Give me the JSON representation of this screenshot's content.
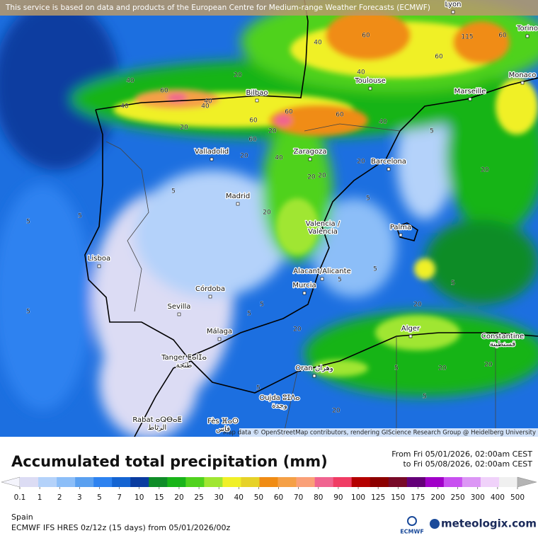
{
  "header_notice": "This service is based on data and products of the European Centre for Medium-range Weather Forecasts (ECMWF)",
  "map": {
    "cities": [
      {
        "name": "Lyon"
      },
      {
        "name": "Torino"
      },
      {
        "name": "Monaco"
      },
      {
        "name": "Toulouse"
      },
      {
        "name": "Marseille"
      },
      {
        "name": "Bilbao"
      },
      {
        "name": "Valladolid"
      },
      {
        "name": "Zaragoza"
      },
      {
        "name": "Barcelona"
      },
      {
        "name": "Madrid"
      },
      {
        "name": "Valencia /",
        "alt": "València"
      },
      {
        "name": "Palma"
      },
      {
        "name": "Lisboa"
      },
      {
        "name": "Alacant/Alicante"
      },
      {
        "name": "Murcia"
      },
      {
        "name": "Córdoba"
      },
      {
        "name": "Sevilla"
      },
      {
        "name": "Málaga"
      },
      {
        "name": "Alger"
      },
      {
        "name": "Constantine",
        "alt": "قسنطينة"
      },
      {
        "name": "Tanger ⵟⴰⵏⵊⴰ",
        "alt": "طنجة"
      },
      {
        "name": "Oran وهران"
      },
      {
        "name": "Oujda ⵓⵊⴷⴰ",
        "alt": "وجدة"
      },
      {
        "name": "Rabat ⴰⵕⴱⴰⵟ",
        "alt": "الرباط"
      },
      {
        "name": "Fès ⴼⴰⵙ",
        "alt": "فاس"
      }
    ],
    "contour_labels": [
      40,
      60,
      40,
      40,
      60,
      20,
      60,
      60,
      40,
      60,
      40,
      20,
      60,
      40,
      20,
      40,
      60,
      40,
      20,
      115,
      60,
      20,
      5,
      5,
      5,
      20,
      20,
      5,
      5,
      5,
      5,
      20,
      5,
      5,
      20,
      5,
      20,
      5,
      20,
      5,
      5,
      20,
      20,
      5,
      20
    ],
    "attribution": "Map data © OpenStreetMap contributors, rendering GIScience Research Group @ Heidelberg University"
  },
  "title": "Accumulated total precipitation (mm)",
  "period": {
    "from": "From Fri 05/01/2026, 02:00am CEST",
    "to": "to Fri 05/08/2026, 02:00am CEST"
  },
  "legend": {
    "levels": [
      0.1,
      1,
      2,
      3,
      5,
      7,
      10,
      15,
      20,
      25,
      30,
      40,
      50,
      60,
      70,
      80,
      90,
      100,
      125,
      150,
      175,
      200,
      250,
      300,
      400,
      500
    ],
    "colors": [
      "#f4f4fc",
      "#dcdcf4",
      "#b4d2fa",
      "#8cbef8",
      "#5aa0f0",
      "#2d82f0",
      "#1464d2",
      "#0a3ca0",
      "#0f8c28",
      "#19b419",
      "#50d21e",
      "#a0e632",
      "#f0f028",
      "#e6d228",
      "#f08c14",
      "#f5a046",
      "#faa078",
      "#f06490",
      "#f03c64",
      "#b40000",
      "#8c0000",
      "#780a28",
      "#640078",
      "#a000c8",
      "#c850f0",
      "#dc96f5",
      "#f0d2fa",
      "#f0f0f0",
      "#b4b4b4"
    ]
  },
  "footer": {
    "region": "Spain",
    "model": "ECMWF IFS HRES 0z/12z (15 days) from 05/01/2026/00z",
    "logo_left": "ECMWF",
    "logo_right": "meteologix.com"
  }
}
